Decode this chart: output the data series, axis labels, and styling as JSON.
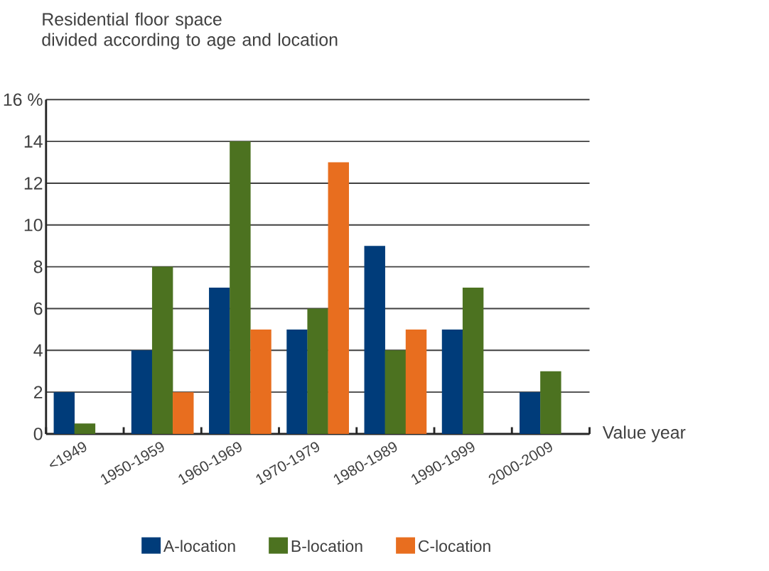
{
  "chart_data": {
    "type": "bar",
    "title": "Residential floor space\ndivided according to age and location",
    "xlabel": "Value year",
    "categories": [
      "<1949",
      "1950-1959",
      "1960-1969",
      "1970-1979",
      "1980-1989",
      "1990-1999",
      "2000-2009"
    ],
    "series": [
      {
        "name": "A-location",
        "color": "#003c7a",
        "values": [
          2,
          4,
          7,
          5,
          9,
          5,
          2
        ]
      },
      {
        "name": "B-location",
        "color": "#4c7220",
        "values": [
          0.5,
          8,
          14,
          6,
          4,
          7,
          3
        ]
      },
      {
        "name": "C-location",
        "color": "#e86e1f",
        "values": [
          null,
          2,
          5,
          13,
          5,
          null,
          null
        ]
      }
    ],
    "ylim": [
      0,
      16
    ],
    "yticks": [
      0,
      2,
      4,
      6,
      8,
      10,
      12,
      14,
      {
        "value": 16,
        "label": "16 %"
      }
    ],
    "grid": "y",
    "legend": "bottom"
  }
}
